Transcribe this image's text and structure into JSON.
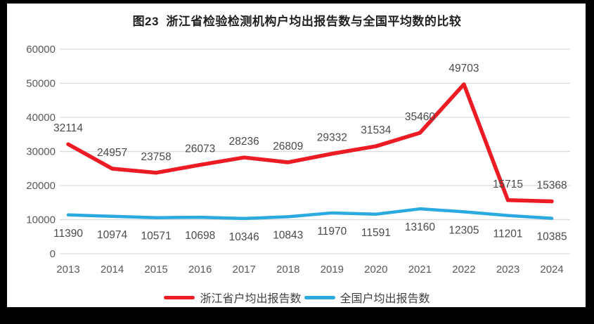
{
  "title": "图23  浙江省检验检测机构户均出报告数与全国平均数的比较",
  "chart_data": {
    "type": "line",
    "title": "图23  浙江省检验检测机构户均出报告数与全国平均数的比较",
    "categories": [
      "2013",
      "2014",
      "2015",
      "2016",
      "2017",
      "2018",
      "2019",
      "2020",
      "2021",
      "2022",
      "2023",
      "2024"
    ],
    "series": [
      {
        "name": "浙江省户均出报告数",
        "color": "#EC1B24",
        "values": [
          32114,
          24957,
          23758,
          26073,
          28236,
          26809,
          29332,
          31534,
          35460,
          49703,
          15715,
          15368
        ],
        "label_side": "above"
      },
      {
        "name": "全国户均出报告数",
        "color": "#2BAADF",
        "values": [
          11390,
          10974,
          10571,
          10698,
          10346,
          10843,
          11970,
          11591,
          13160,
          12305,
          11201,
          10385
        ],
        "label_side": "below"
      }
    ],
    "xlabel": "",
    "ylabel": "",
    "ylim": [
      0,
      60000
    ],
    "yticks": [
      0,
      10000,
      20000,
      30000,
      40000,
      50000,
      60000
    ],
    "grid": true,
    "legend_position": "bottom",
    "colors": {
      "gridline": "#D9D9D9",
      "tick_text": "#595959",
      "data_label_text": "#4a4a4a",
      "background": "#ffffff",
      "frame": "#000000"
    }
  }
}
